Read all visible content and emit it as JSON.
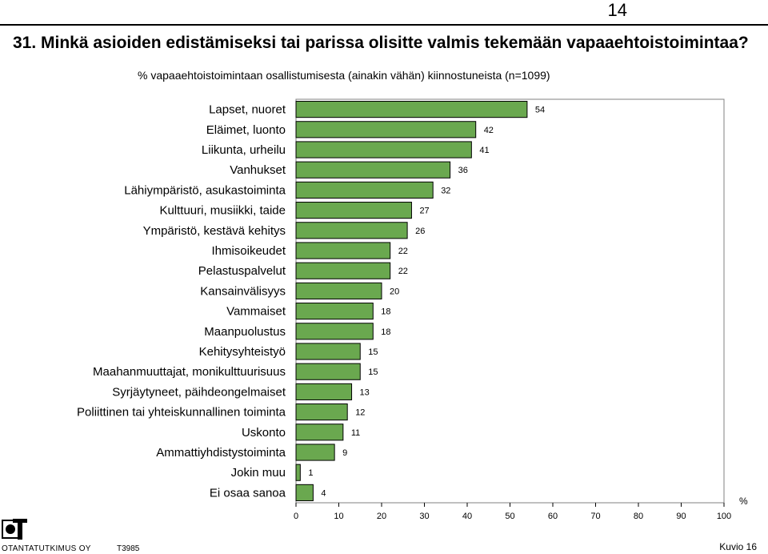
{
  "page_number": "14",
  "question_title": "31. Minkä asioiden edistämiseksi tai parissa olisitte valmis tekemään vapaaehtoistoimintaa?",
  "subtitle": "% vapaaehtoistoimintaan osallistumisesta (ainakin vähän) kiinnostuneista (n=1099)",
  "footer": {
    "company": "OTANTATUTKIMUS OY",
    "code": "T3985",
    "figure": "Kuvio 16"
  },
  "colors": {
    "bar_fill": "#6aa84f",
    "bar_stroke": "#000000",
    "grid": "#000000"
  },
  "chart_data": {
    "type": "bar",
    "orientation": "horizontal",
    "title": "",
    "xlabel": "%",
    "ylabel": "",
    "xlim": [
      0,
      100
    ],
    "xticks": [
      0,
      10,
      20,
      30,
      40,
      50,
      60,
      70,
      80,
      90,
      100
    ],
    "grid": false,
    "categories": [
      "Lapset, nuoret",
      "Eläimet, luonto",
      "Liikunta, urheilu",
      "Vanhukset",
      "Lähiympäristö, asukastoiminta",
      "Kulttuuri, musiikki, taide",
      "Ympäristö, kestävä kehitys",
      "Ihmisoikeudet",
      "Pelastuspalvelut",
      "Kansainvälisyys",
      "Vammaiset",
      "Maanpuolustus",
      "Kehitysyhteistyö",
      "Maahanmuuttajat, monikulttuurisuus",
      "Syrjäytyneet, päihdeongelmaiset",
      "Poliittinen tai yhteiskunnallinen toiminta",
      "Uskonto",
      "Ammattiyhdistystoiminta",
      "Jokin muu",
      "Ei osaa sanoa"
    ],
    "values": [
      54,
      42,
      41,
      36,
      32,
      27,
      26,
      22,
      22,
      20,
      18,
      18,
      15,
      15,
      13,
      12,
      11,
      9,
      1,
      4
    ]
  }
}
